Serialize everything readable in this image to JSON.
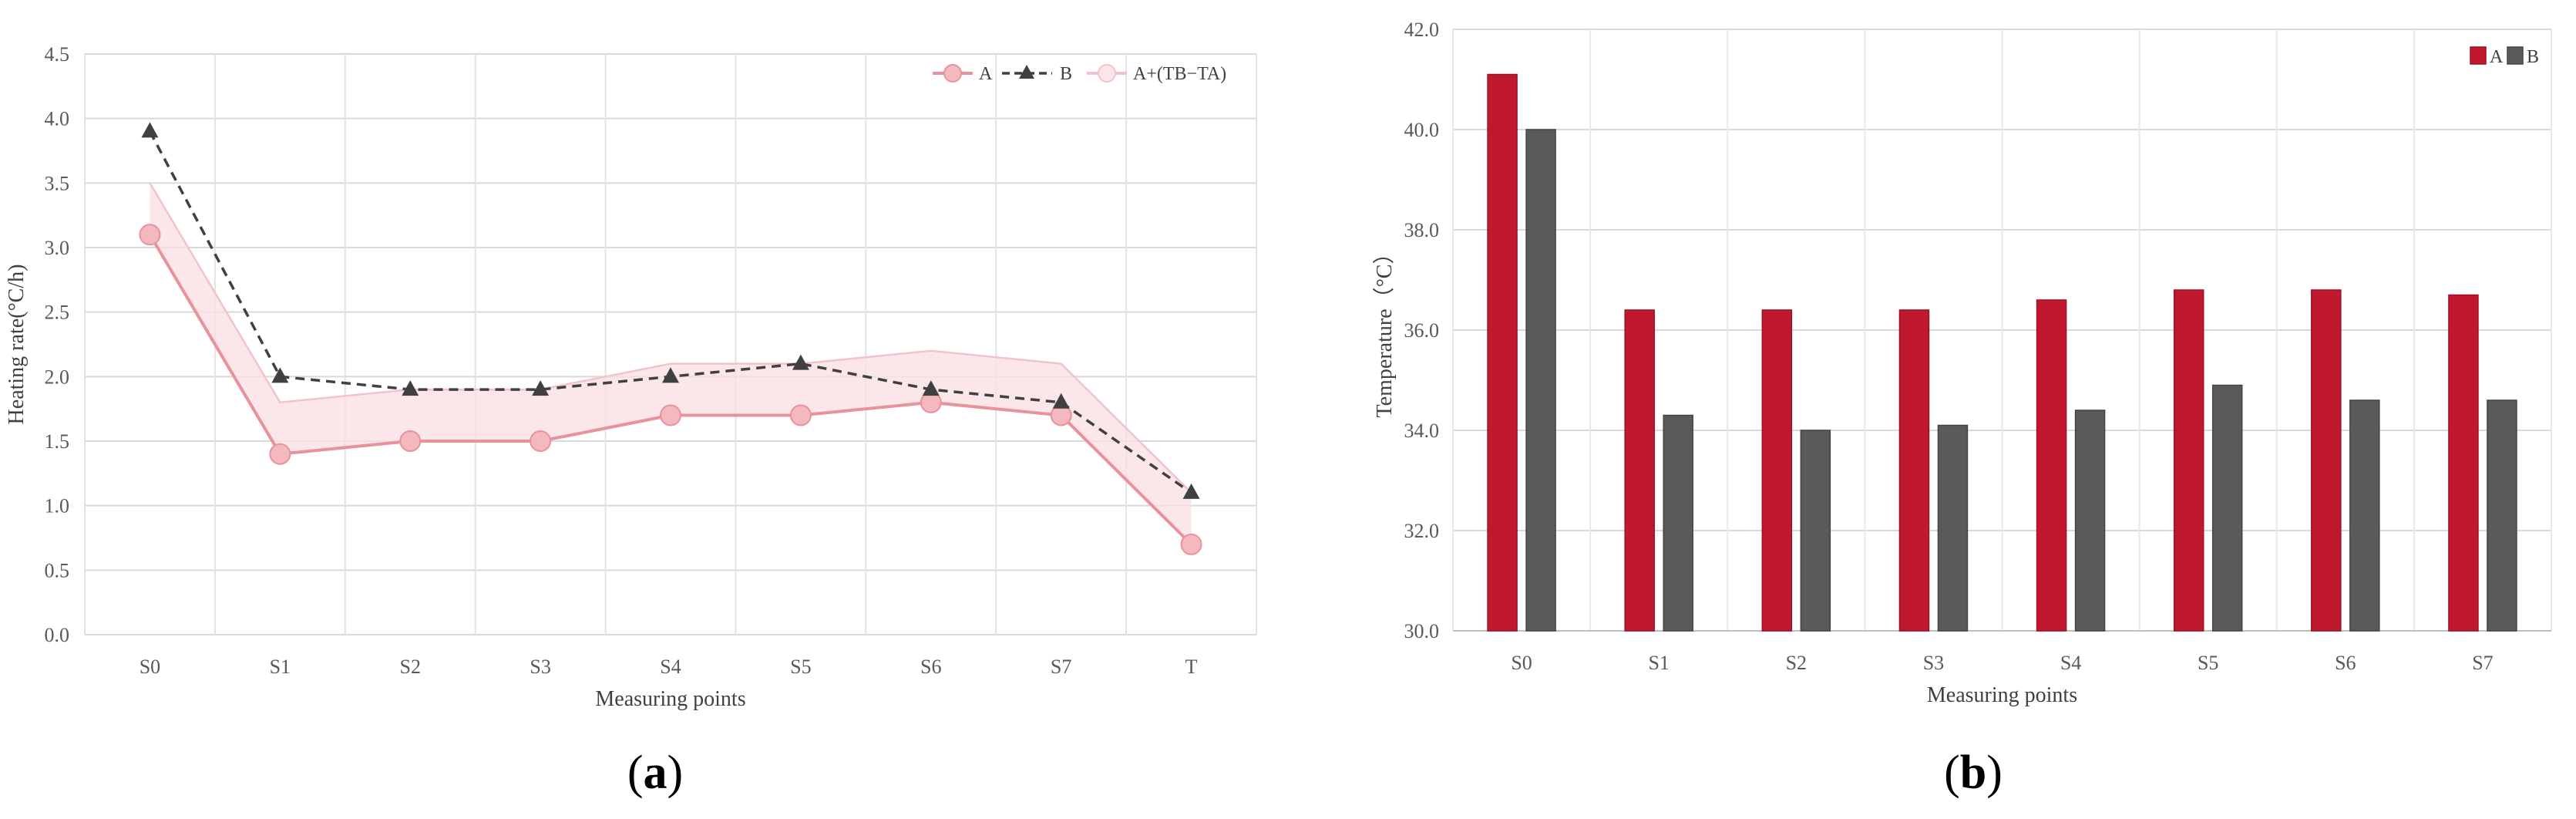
{
  "chart_data": [
    {
      "type": "line",
      "panel_label": "a",
      "xlabel": "Measuring points",
      "ylabel": "Heating rate(°C/h)",
      "categories": [
        "S0",
        "S1",
        "S2",
        "S3",
        "S4",
        "S5",
        "S6",
        "S7",
        "T"
      ],
      "ylim": [
        0,
        4.5
      ],
      "yticks": [
        "0.0",
        "0.5",
        "1.0",
        "1.5",
        "2.0",
        "2.5",
        "3.0",
        "3.5",
        "4.0",
        "4.5"
      ],
      "grid": true,
      "legend_position": "top-right",
      "series": [
        {
          "name": "A",
          "values": [
            3.1,
            1.4,
            1.5,
            1.5,
            1.7,
            1.7,
            1.8,
            1.7,
            0.7
          ],
          "color": "#e8929b",
          "marker": "circle"
        },
        {
          "name": "B",
          "values": [
            3.9,
            2.0,
            1.9,
            1.9,
            2.0,
            2.1,
            1.9,
            1.8,
            1.1
          ],
          "color": "#404040",
          "marker": "triangle",
          "dashed": true
        },
        {
          "name": "A+(TB−TA)",
          "values": [
            3.5,
            1.8,
            1.9,
            1.9,
            2.1,
            2.1,
            2.2,
            2.1,
            1.1
          ],
          "color": "#f9dfe2",
          "type": "area"
        }
      ]
    },
    {
      "type": "bar",
      "panel_label": "b",
      "xlabel": "Measuring points",
      "ylabel": "Temperature（°C）",
      "categories": [
        "S0",
        "S1",
        "S2",
        "S3",
        "S4",
        "S5",
        "S6",
        "S7"
      ],
      "ylim": [
        30,
        42
      ],
      "yticks": [
        "30.0",
        "32.0",
        "34.0",
        "36.0",
        "38.0",
        "40.0",
        "42.0"
      ],
      "grid": true,
      "legend_position": "top-right",
      "series": [
        {
          "name": "A",
          "values": [
            41.1,
            36.4,
            36.4,
            36.4,
            36.6,
            36.8,
            36.8,
            36.7
          ],
          "color": "#c0182f"
        },
        {
          "name": "B",
          "values": [
            40.0,
            34.3,
            34.0,
            34.1,
            34.4,
            34.9,
            34.6,
            34.6
          ],
          "color": "#5a5a5a"
        }
      ]
    }
  ]
}
